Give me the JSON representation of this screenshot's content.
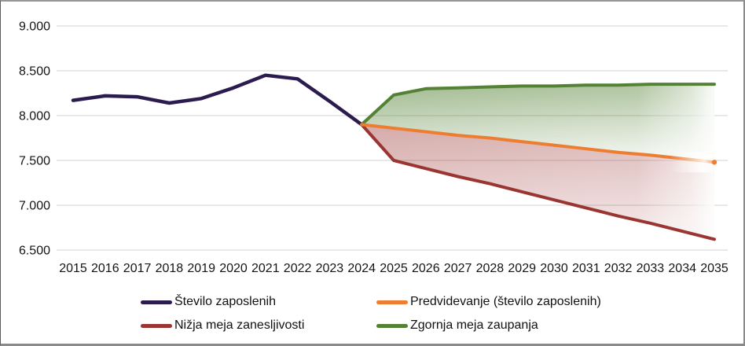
{
  "window": {
    "background": "#ffffff",
    "border_color": "#8a8a8a"
  },
  "chart_data": {
    "type": "line",
    "title": "",
    "grid": true,
    "gridline_color": "#d9d9d9",
    "legend_position": "bottom",
    "ylim": [
      6500,
      9000
    ],
    "ytick_step": 500,
    "y_tick_labels": [
      "9.000",
      "8.500",
      "8.000",
      "7.500",
      "7.000",
      "6.500"
    ],
    "x_labels": [
      "2015",
      "2016",
      "2017",
      "2018",
      "2019",
      "2020",
      "2021",
      "2022",
      "2023",
      "2024",
      "2025",
      "2026",
      "2027",
      "2028",
      "2029",
      "2030",
      "2031",
      "2032",
      "2033",
      "2034",
      "2035"
    ],
    "series": [
      {
        "name": "Število zaposlenih",
        "color": "#2B1B4F",
        "start_year": 2015,
        "values": [
          8170,
          8220,
          8210,
          8140,
          8190,
          8310,
          8450,
          8410,
          8160,
          7900
        ]
      },
      {
        "name": "Predvidevanje (število zaposlenih)",
        "color": "#ED7D31",
        "start_year": 2024,
        "values": [
          7900,
          7860,
          7820,
          7780,
          7750,
          7710,
          7670,
          7630,
          7590,
          7560,
          7520,
          7480
        ]
      },
      {
        "name": "Nižja meja zanesljivosti",
        "color": "#9A3532",
        "start_year": 2024,
        "values": [
          7900,
          7500,
          7410,
          7320,
          7240,
          7150,
          7060,
          6970,
          6880,
          6800,
          6710,
          6620
        ]
      },
      {
        "name": "Zgornja meja zaupanja",
        "color": "#548235",
        "start_year": 2024,
        "values": [
          7900,
          8230,
          8300,
          8310,
          8320,
          8330,
          8330,
          8340,
          8340,
          8350,
          8350,
          8350
        ]
      }
    ],
    "areas": [
      {
        "name": "upper-confidence-area",
        "between": [
          "Zgornja meja zaupanja",
          "Predvidevanje (število zaposlenih)"
        ],
        "fill": "#548235"
      },
      {
        "name": "lower-confidence-area",
        "between": [
          "Predvidevanje (število zaposlenih)",
          "Nižja meja zanesljivosti"
        ],
        "fill": "#9A3532"
      }
    ]
  },
  "legend": {
    "items": [
      {
        "label": "Število zaposlenih",
        "color": "#2B1B4F"
      },
      {
        "label": "Predvidevanje (število zaposlenih)",
        "color": "#ED7D31"
      },
      {
        "label": "Nižja meja zanesljivosti",
        "color": "#9A3532"
      },
      {
        "label": "Zgornja meja zaupanja",
        "color": "#548235"
      }
    ]
  }
}
